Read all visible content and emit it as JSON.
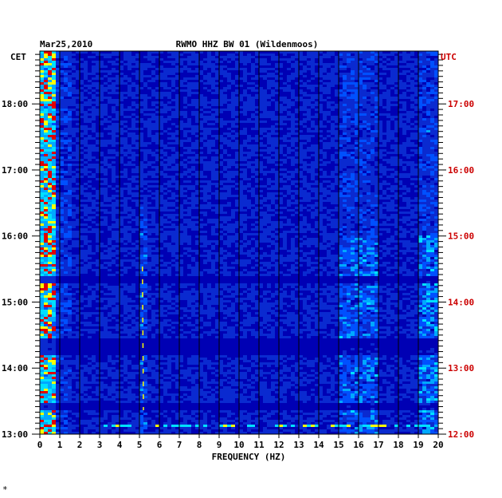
{
  "chart_data": {
    "type": "heatmap",
    "date": "Mar25,2010",
    "station_title": "RWMO HHZ BW 01 (Wildenmoos)",
    "left_timezone": "CET",
    "right_timezone": "UTC",
    "xlabel": "FREQUENCY (HZ)",
    "xlim": [
      0,
      20
    ],
    "x_ticks": [
      "0",
      "1",
      "2",
      "3",
      "4",
      "5",
      "6",
      "7",
      "8",
      "9",
      "10",
      "11",
      "12",
      "13",
      "14",
      "15",
      "16",
      "17",
      "18",
      "19",
      "20"
    ],
    "left_time_ticks": [
      "18:00",
      "17:00",
      "16:00",
      "15:00",
      "14:00",
      "13:00"
    ],
    "right_time_ticks": [
      "17:00",
      "16:00",
      "15:00",
      "14:00",
      "13:00",
      "12:00"
    ],
    "time_range_cet_hours": [
      13.0,
      18.8
    ],
    "colors": {
      "background": "#0000b4",
      "low": "#0000a0",
      "mid": "#0050ff",
      "high_cyan": "#00e0ff",
      "yellow": "#ffff00",
      "red": "#e00000",
      "right_axis": "#cc0000"
    },
    "footer_mark": "*"
  }
}
